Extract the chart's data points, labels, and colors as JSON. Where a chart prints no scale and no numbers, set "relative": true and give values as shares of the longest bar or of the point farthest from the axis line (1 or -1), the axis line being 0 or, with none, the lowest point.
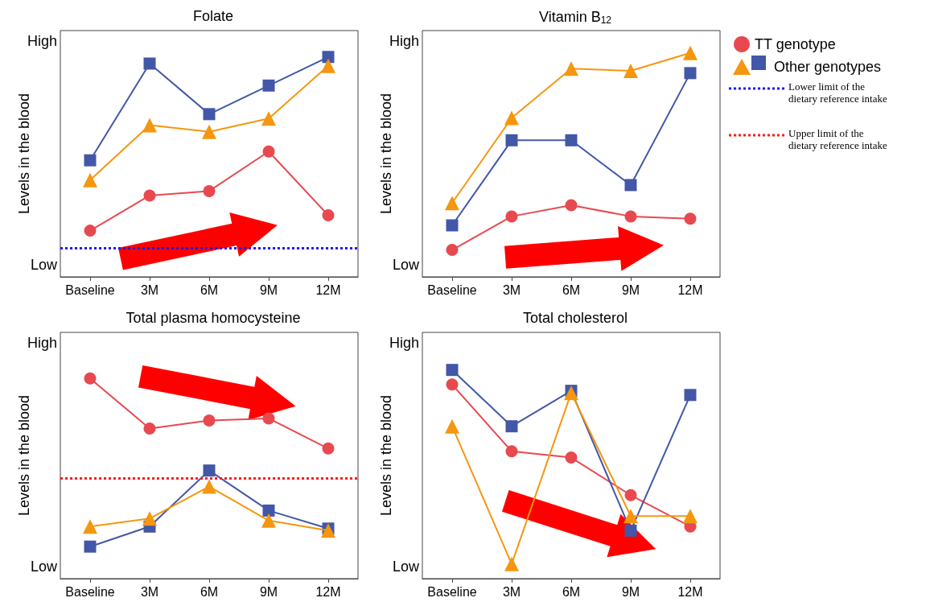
{
  "chart_data": [
    {
      "type": "line",
      "title": "Folate",
      "ylabel": "Levels in the blood",
      "annotations": [
        "High",
        "Low"
      ],
      "relative": true,
      "categories": [
        "Baseline",
        "3M",
        "6M",
        "9M",
        "12M"
      ],
      "series": [
        {
          "color": "#e8494f",
          "marker": "circle",
          "values": [
            0.21,
            0.37,
            0.39,
            0.57,
            0.28
          ]
        },
        {
          "color": "#f5960f",
          "marker": "triangle",
          "values": [
            0.44,
            0.69,
            0.66,
            0.72,
            0.96
          ]
        },
        {
          "color": "#4257a8",
          "marker": "square",
          "values": [
            0.53,
            0.97,
            0.74,
            0.87,
            1
          ]
        }
      ],
      "ref_lines": [
        {
          "axis": "y",
          "value": 0.13,
          "label": "Lower limit of the dietary reference intake",
          "color": "#1a1aff",
          "line_style": "dotted"
        }
      ]
    },
    {
      "type": "line",
      "title": "Vitamin B$_{12}$",
      "ylabel": "Levels in the blood",
      "annotations": [
        "High",
        "Low"
      ],
      "relative": true,
      "categories": [
        "Baseline",
        "3M",
        "6M",
        "9M",
        "12M"
      ],
      "legend": "top right",
      "series": [
        {
          "name": "TT genotype",
          "color": "#e8494f",
          "marker": "circle",
          "values": [
            0.12,
            0.27,
            0.32,
            0.27,
            0.26
          ]
        },
        {
          "name": "Other genotypes",
          "color": "#f5960f",
          "marker": "triangle",
          "values": [
            0.33,
            0.71,
            0.93,
            0.92,
            1
          ]
        },
        {
          "color": "#4257a8",
          "marker": "square",
          "values": [
            0.23,
            0.61,
            0.61,
            0.41,
            0.91
          ]
        }
      ]
    },
    {
      "type": "line",
      "title": "Total plasma homocysteine",
      "ylabel": "Levels in the blood",
      "annotations": [
        "High",
        "Low"
      ],
      "relative": true,
      "categories": [
        "Baseline",
        "3M",
        "6M",
        "9M",
        "12M"
      ],
      "series": [
        {
          "color": "#e8494f",
          "marker": "circle",
          "values": [
            1,
            0.75,
            0.79,
            0.8,
            0.65
          ]
        },
        {
          "color": "#f5960f",
          "marker": "triangle",
          "values": [
            0.26,
            0.3,
            0.46,
            0.29,
            0.24
          ]
        },
        {
          "color": "#4257a8",
          "marker": "square",
          "values": [
            0.16,
            0.26,
            0.54,
            0.34,
            0.25
          ]
        }
      ],
      "ref_lines": [
        {
          "axis": "y",
          "value": 0.5,
          "label": "Upper limit of the dietary reference intake",
          "color": "#ff1a1a",
          "line_style": "dotted"
        }
      ]
    },
    {
      "type": "line",
      "title": "Total cholesterol",
      "ylabel": "Levels in the blood",
      "annotations": [
        "High",
        "Low"
      ],
      "relative": true,
      "categories": [
        "Baseline",
        "3M",
        "6M",
        "9M",
        "12M"
      ],
      "series": [
        {
          "color": "#e8494f",
          "marker": "circle",
          "values": [
            0.93,
            0.61,
            0.58,
            0.4,
            0.25
          ]
        },
        {
          "color": "#f5960f",
          "marker": "triangle",
          "values": [
            0.73,
            0.07,
            0.89,
            0.3,
            0.3
          ]
        },
        {
          "color": "#4257a8",
          "marker": "square",
          "values": [
            1,
            0.73,
            0.9,
            0.23,
            0.88
          ]
        }
      ]
    }
  ]
}
